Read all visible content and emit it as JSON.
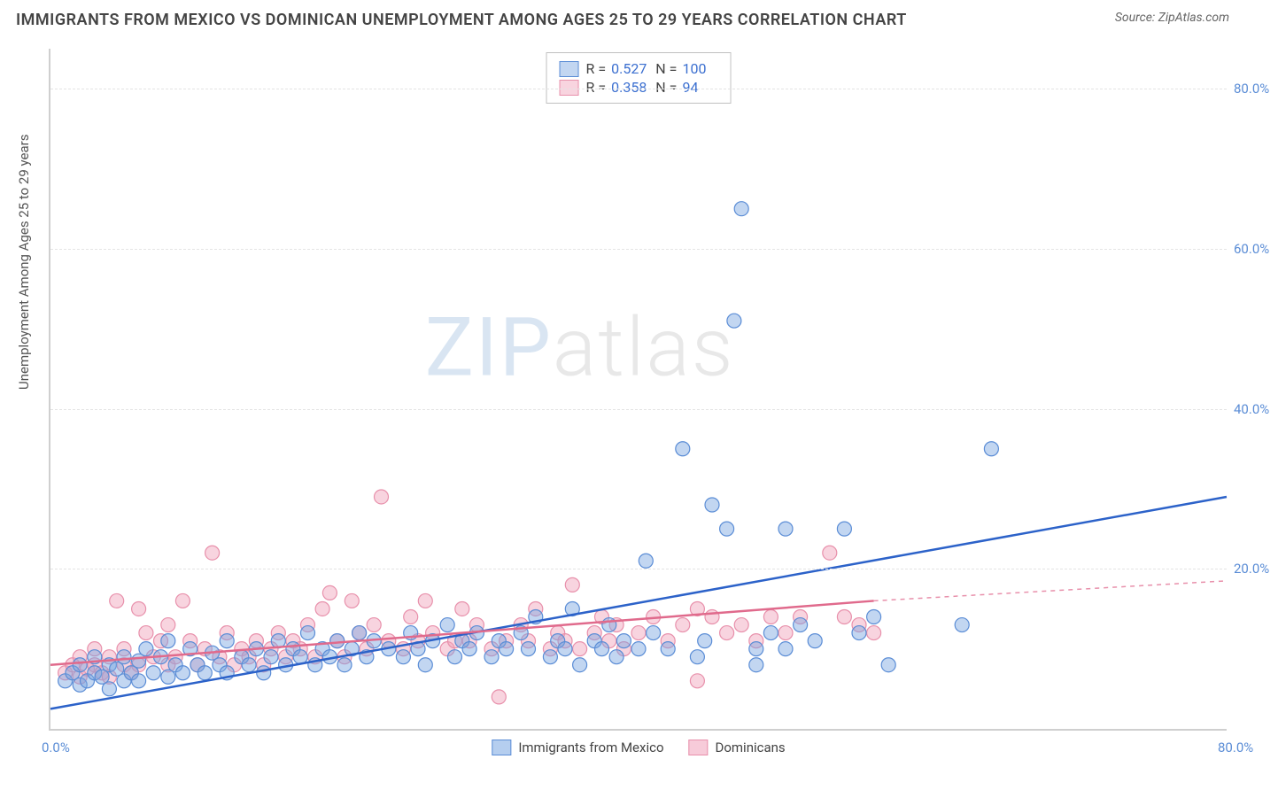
{
  "title": "IMMIGRANTS FROM MEXICO VS DOMINICAN UNEMPLOYMENT AMONG AGES 25 TO 29 YEARS CORRELATION CHART",
  "source_label": "Source: ",
  "source_name": "ZipAtlas.com",
  "ylabel": "Unemployment Among Ages 25 to 29 years",
  "watermark": {
    "part1": "ZIP",
    "part2": "atlas"
  },
  "chart": {
    "type": "scatter",
    "xlim": [
      0,
      80
    ],
    "ylim": [
      0,
      85
    ],
    "xtick_labels": [
      {
        "value": 0,
        "label": "0.0%"
      },
      {
        "value": 80,
        "label": "80.0%"
      }
    ],
    "ytick_labels": [
      {
        "value": 20,
        "label": "20.0%"
      },
      {
        "value": 40,
        "label": "40.0%"
      },
      {
        "value": 60,
        "label": "60.0%"
      },
      {
        "value": 80,
        "label": "80.0%"
      }
    ],
    "grid_color": "#e4e4e4",
    "axis_color": "#cfcfcf",
    "background_color": "#ffffff",
    "tick_label_color": "#5b8dd6",
    "marker_radius": 8,
    "marker_stroke_width": 1.2,
    "trend_line_width": 2.5,
    "series": [
      {
        "name": "Immigrants from Mexico",
        "fill_color": "rgba(120,165,225,0.45)",
        "stroke_color": "#5b8dd6",
        "line_color": "#2c62c9",
        "R": "0.527",
        "N": "100",
        "trend": {
          "x1": 0,
          "y1": 2.5,
          "x2": 80,
          "y2": 29.0
        },
        "points": [
          [
            1,
            6
          ],
          [
            1.5,
            7
          ],
          [
            2,
            5.5
          ],
          [
            2,
            8
          ],
          [
            2.5,
            6
          ],
          [
            3,
            7
          ],
          [
            3,
            9
          ],
          [
            3.5,
            6.5
          ],
          [
            4,
            8
          ],
          [
            4,
            5
          ],
          [
            4.5,
            7.5
          ],
          [
            5,
            6
          ],
          [
            5,
            9
          ],
          [
            5.5,
            7
          ],
          [
            6,
            8.5
          ],
          [
            6,
            6
          ],
          [
            6.5,
            10
          ],
          [
            7,
            7
          ],
          [
            7.5,
            9
          ],
          [
            8,
            6.5
          ],
          [
            8,
            11
          ],
          [
            8.5,
            8
          ],
          [
            9,
            7
          ],
          [
            9.5,
            10
          ],
          [
            10,
            8
          ],
          [
            10.5,
            7
          ],
          [
            11,
            9.5
          ],
          [
            11.5,
            8
          ],
          [
            12,
            11
          ],
          [
            12,
            7
          ],
          [
            13,
            9
          ],
          [
            13.5,
            8
          ],
          [
            14,
            10
          ],
          [
            14.5,
            7
          ],
          [
            15,
            9
          ],
          [
            15.5,
            11
          ],
          [
            16,
            8
          ],
          [
            16.5,
            10
          ],
          [
            17,
            9
          ],
          [
            17.5,
            12
          ],
          [
            18,
            8
          ],
          [
            18.5,
            10
          ],
          [
            19,
            9
          ],
          [
            19.5,
            11
          ],
          [
            20,
            8
          ],
          [
            20.5,
            10
          ],
          [
            21,
            12
          ],
          [
            21.5,
            9
          ],
          [
            22,
            11
          ],
          [
            23,
            10
          ],
          [
            24,
            9
          ],
          [
            24.5,
            12
          ],
          [
            25,
            10
          ],
          [
            25.5,
            8
          ],
          [
            26,
            11
          ],
          [
            27,
            13
          ],
          [
            27.5,
            9
          ],
          [
            28,
            11
          ],
          [
            28.5,
            10
          ],
          [
            29,
            12
          ],
          [
            30,
            9
          ],
          [
            30.5,
            11
          ],
          [
            31,
            10
          ],
          [
            32,
            12
          ],
          [
            32.5,
            10
          ],
          [
            33,
            14
          ],
          [
            34,
            9
          ],
          [
            34.5,
            11
          ],
          [
            35,
            10
          ],
          [
            35.5,
            15
          ],
          [
            36,
            8
          ],
          [
            37,
            11
          ],
          [
            37.5,
            10
          ],
          [
            38,
            13
          ],
          [
            38.5,
            9
          ],
          [
            39,
            11
          ],
          [
            40,
            10
          ],
          [
            40.5,
            21
          ],
          [
            41,
            12
          ],
          [
            42,
            10
          ],
          [
            43,
            35
          ],
          [
            44,
            9
          ],
          [
            44.5,
            11
          ],
          [
            45,
            28
          ],
          [
            46,
            25
          ],
          [
            46.5,
            51
          ],
          [
            47,
            65
          ],
          [
            48,
            10
          ],
          [
            49,
            12
          ],
          [
            50,
            25
          ],
          [
            51,
            13
          ],
          [
            52,
            11
          ],
          [
            54,
            25
          ],
          [
            55,
            12
          ],
          [
            56,
            14
          ],
          [
            57,
            8
          ],
          [
            62,
            13
          ],
          [
            64,
            35
          ],
          [
            48,
            8
          ],
          [
            50,
            10
          ]
        ]
      },
      {
        "name": "Dominicans",
        "fill_color": "rgba(240,160,185,0.45)",
        "stroke_color": "#e890ab",
        "line_color": "#e06a8c",
        "dash_color": "#e890ab",
        "R": "0.358",
        "N": "94",
        "trend": {
          "x1": 0,
          "y1": 8.0,
          "x2": 56,
          "y2": 16.0
        },
        "dash_extend": {
          "x1": 56,
          "y1": 16.0,
          "x2": 80,
          "y2": 18.5
        },
        "points": [
          [
            1,
            7
          ],
          [
            1.5,
            8
          ],
          [
            2,
            6.5
          ],
          [
            2,
            9
          ],
          [
            2.5,
            7.5
          ],
          [
            3,
            8
          ],
          [
            3,
            10
          ],
          [
            3.5,
            7
          ],
          [
            4,
            9
          ],
          [
            4,
            6.5
          ],
          [
            4.5,
            16
          ],
          [
            5,
            8
          ],
          [
            5,
            10
          ],
          [
            5.5,
            7
          ],
          [
            6,
            15
          ],
          [
            6,
            8
          ],
          [
            6.5,
            12
          ],
          [
            7,
            9
          ],
          [
            7.5,
            11
          ],
          [
            8,
            8
          ],
          [
            8,
            13
          ],
          [
            8.5,
            9
          ],
          [
            9,
            16
          ],
          [
            9.5,
            11
          ],
          [
            10,
            8
          ],
          [
            10.5,
            10
          ],
          [
            11,
            22
          ],
          [
            11.5,
            9
          ],
          [
            12,
            12
          ],
          [
            12.5,
            8
          ],
          [
            13,
            10
          ],
          [
            13.5,
            9
          ],
          [
            14,
            11
          ],
          [
            14.5,
            8
          ],
          [
            15,
            10
          ],
          [
            15.5,
            12
          ],
          [
            16,
            9
          ],
          [
            16.5,
            11
          ],
          [
            17,
            10
          ],
          [
            17.5,
            13
          ],
          [
            18,
            9
          ],
          [
            18.5,
            15
          ],
          [
            19,
            17
          ],
          [
            19.5,
            11
          ],
          [
            20,
            9
          ],
          [
            20.5,
            16
          ],
          [
            21,
            12
          ],
          [
            21.5,
            10
          ],
          [
            22,
            13
          ],
          [
            22.5,
            29
          ],
          [
            23,
            11
          ],
          [
            24,
            10
          ],
          [
            24.5,
            14
          ],
          [
            25,
            11
          ],
          [
            25.5,
            16
          ],
          [
            26,
            12
          ],
          [
            27,
            10
          ],
          [
            27.5,
            11
          ],
          [
            28,
            15
          ],
          [
            28.5,
            11
          ],
          [
            29,
            13
          ],
          [
            30,
            10
          ],
          [
            30.5,
            4
          ],
          [
            31,
            11
          ],
          [
            32,
            13
          ],
          [
            32.5,
            11
          ],
          [
            33,
            15
          ],
          [
            34,
            10
          ],
          [
            34.5,
            12
          ],
          [
            35,
            11
          ],
          [
            35.5,
            18
          ],
          [
            36,
            10
          ],
          [
            37,
            12
          ],
          [
            37.5,
            14
          ],
          [
            38,
            11
          ],
          [
            38.5,
            13
          ],
          [
            39,
            10
          ],
          [
            40,
            12
          ],
          [
            41,
            14
          ],
          [
            42,
            11
          ],
          [
            43,
            13
          ],
          [
            44,
            6
          ],
          [
            45,
            14
          ],
          [
            46,
            12
          ],
          [
            47,
            13
          ],
          [
            48,
            11
          ],
          [
            49,
            14
          ],
          [
            50,
            12
          ],
          [
            51,
            14
          ],
          [
            53,
            22
          ],
          [
            54,
            14
          ],
          [
            55,
            13
          ],
          [
            56,
            12
          ],
          [
            44,
            15
          ]
        ]
      }
    ]
  },
  "legend_bottom": [
    {
      "label": "Immigrants from Mexico",
      "fill": "rgba(120,165,225,0.55)",
      "stroke": "#5b8dd6"
    },
    {
      "label": "Dominicans",
      "fill": "rgba(240,160,185,0.55)",
      "stroke": "#e890ab"
    }
  ]
}
